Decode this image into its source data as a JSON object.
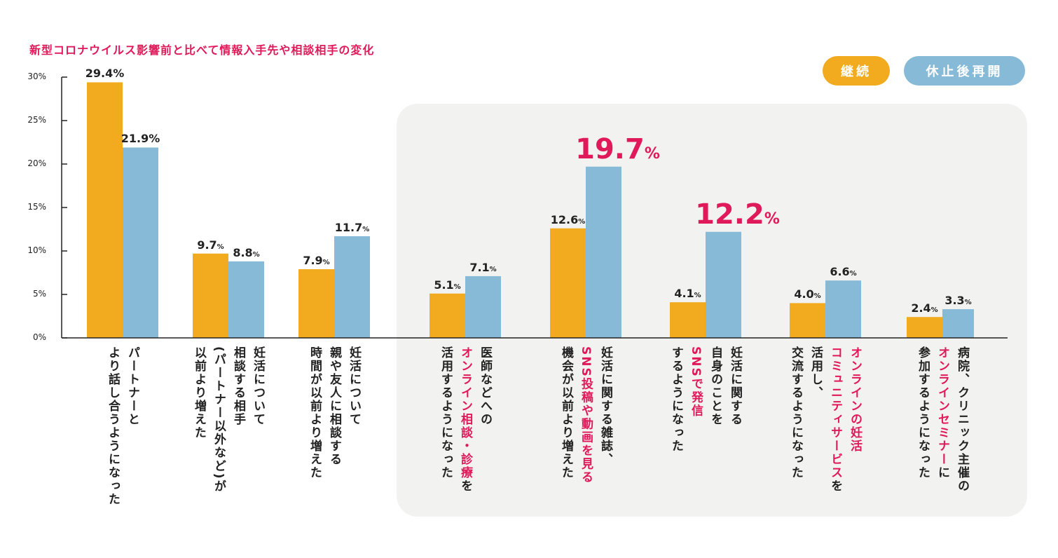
{
  "colors": {
    "continue": "#F2AA1E",
    "resumed": "#86BAD6",
    "highlight": "#E0195A",
    "panel": "#F2F2F1"
  },
  "chart_data": {
    "type": "bar",
    "title": "新型コロナウイルス影響前と比べて情報入手先や相談相手の変化",
    "ylim": [
      0,
      30
    ],
    "yticks": [
      "0%",
      "5%",
      "10%",
      "15%",
      "20%",
      "25%",
      "30%"
    ],
    "legend_position": "top-right",
    "series": [
      {
        "name": "継続",
        "color": "#F2AA1E",
        "values": [
          29.4,
          9.7,
          7.9,
          5.1,
          12.6,
          4.1,
          4.0,
          2.4
        ]
      },
      {
        "name": "休止後再開",
        "color": "#86BAD6",
        "values": [
          21.9,
          8.8,
          11.7,
          7.1,
          19.7,
          12.2,
          6.6,
          3.3
        ]
      }
    ],
    "highlighted_values": [
      {
        "series": 1,
        "index": 4
      },
      {
        "series": 1,
        "index": 5
      }
    ],
    "categories": [
      [
        [
          {
            "t": "パートナーと"
          }
        ],
        [
          {
            "t": "より話し合うようになった"
          }
        ]
      ],
      [
        [
          {
            "t": "妊活について"
          }
        ],
        [
          {
            "t": "相談する相手"
          }
        ],
        [
          {
            "t": "(パートナー以外など)が"
          }
        ],
        [
          {
            "t": "以前より増えた"
          }
        ]
      ],
      [
        [
          {
            "t": "妊活について"
          }
        ],
        [
          {
            "t": "親や友人に相談する"
          }
        ],
        [
          {
            "t": "時間が以前より増えた"
          }
        ]
      ],
      [
        [
          {
            "t": "医師などへの"
          }
        ],
        [
          {
            "t": "オンライン相談・診療",
            "hl": true
          },
          {
            "t": "を"
          }
        ],
        [
          {
            "t": "活用するようになった"
          }
        ]
      ],
      [
        [
          {
            "t": "妊活に関する雑誌、"
          }
        ],
        [
          {
            "t": "SNS投稿や動画を見る",
            "hl": true
          }
        ],
        [
          {
            "t": "機会が以前より増えた"
          }
        ]
      ],
      [
        [
          {
            "t": "妊活に関する"
          }
        ],
        [
          {
            "t": "自身のことを"
          }
        ],
        [
          {
            "t": "SNSで発信",
            "hl": true
          }
        ],
        [
          {
            "t": "するようになった"
          }
        ]
      ],
      [
        [
          {
            "t": "オンラインの妊活",
            "hl": true
          }
        ],
        [
          {
            "t": "コミュニティサービス",
            "hl": true
          },
          {
            "t": "を"
          }
        ],
        [
          {
            "t": "活用し、"
          }
        ],
        [
          {
            "t": "交流するようになった"
          }
        ]
      ],
      [
        [
          {
            "t": "病院、クリニック主催の"
          }
        ],
        [
          {
            "t": "オンラインセミナー",
            "hl": true
          },
          {
            "t": "に"
          }
        ],
        [
          {
            "t": "参加するようになった"
          }
        ]
      ]
    ]
  }
}
